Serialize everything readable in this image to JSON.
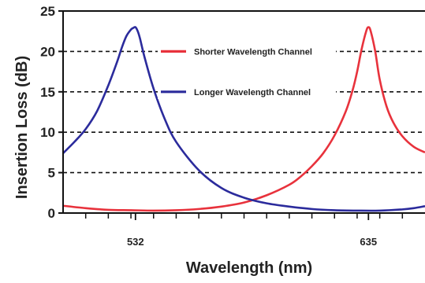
{
  "chart_data": {
    "type": "line",
    "title": "",
    "xlabel": "Wavelength (nm)",
    "ylabel": "Insertion Loss (dB)",
    "ylim": [
      0,
      25
    ],
    "xlim": [
      500,
      660
    ],
    "y_ticks": [
      0,
      5,
      10,
      15,
      20,
      25
    ],
    "x_tick_labels": [
      {
        "value": 532,
        "label": "532"
      },
      {
        "value": 635,
        "label": "635"
      }
    ],
    "grid": "dashed horizontal at y = 5, 10, 15, 20",
    "legend_position": "top-right, inside plot",
    "series": [
      {
        "name": "Shorter Wavelength Channel",
        "color": "#e8323c",
        "x": [
          500,
          510,
          520,
          530,
          540,
          550,
          560,
          570,
          580,
          590,
          600,
          605,
          610,
          615,
          620,
          625,
          628,
          630,
          632,
          634,
          635,
          636,
          638,
          640,
          643,
          646,
          650,
          655,
          660
        ],
        "y": [
          0.9,
          0.6,
          0.4,
          0.35,
          0.3,
          0.35,
          0.5,
          0.8,
          1.3,
          2.2,
          3.5,
          4.5,
          5.8,
          7.4,
          9.6,
          12.6,
          15.2,
          17.5,
          20.3,
          22.5,
          23.0,
          22.5,
          20.0,
          16.5,
          13.2,
          11.2,
          9.5,
          8.2,
          7.5
        ]
      },
      {
        "name": "Longer Wavelength Channel",
        "color": "#2b2b9c",
        "x": [
          500,
          505,
          510,
          515,
          520,
          524,
          526,
          528,
          530,
          531,
          532,
          533,
          534,
          536,
          540,
          545,
          550,
          560,
          570,
          580,
          590,
          600,
          610,
          620,
          630,
          640,
          650,
          655,
          660
        ],
        "y": [
          7.4,
          8.8,
          10.4,
          12.6,
          15.8,
          18.8,
          20.5,
          21.9,
          22.7,
          22.9,
          23.0,
          22.5,
          21.6,
          19.3,
          15.4,
          11.6,
          8.8,
          5.3,
          3.1,
          1.9,
          1.2,
          0.8,
          0.5,
          0.35,
          0.3,
          0.3,
          0.45,
          0.6,
          0.85
        ]
      }
    ]
  }
}
